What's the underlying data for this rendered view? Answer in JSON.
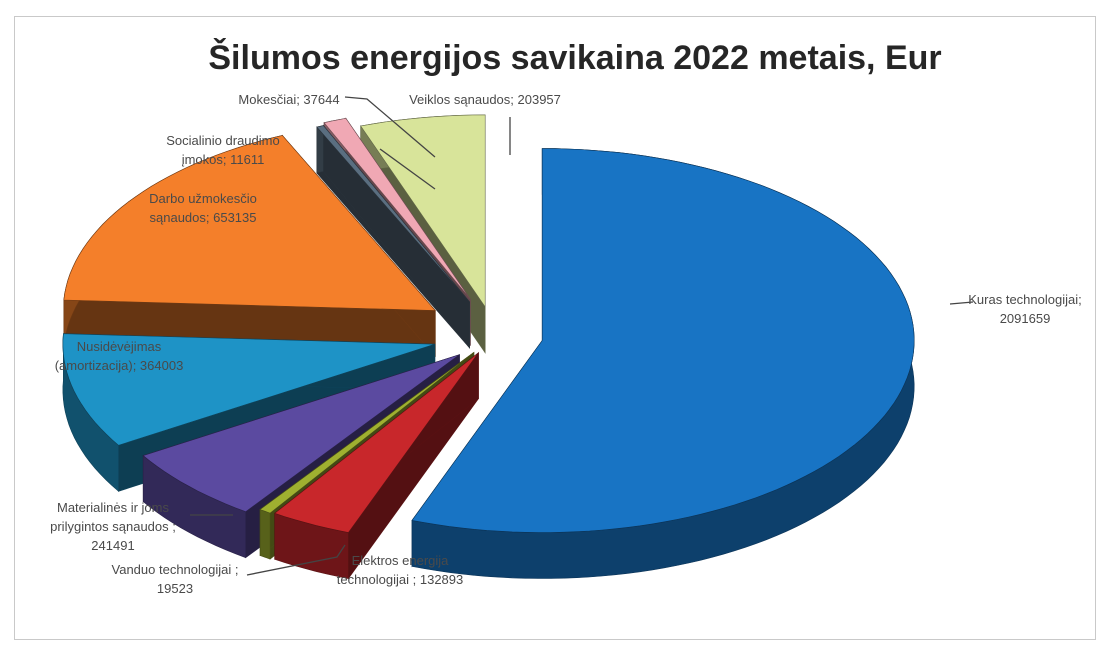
{
  "chart_data": {
    "type": "pie",
    "title": "Šilumos energijos savikaina 2022 metais, Eur",
    "slices": [
      {
        "key": "kuras",
        "label_lines": [
          "Kuras technologijai;",
          "2091659"
        ],
        "value": 2091659,
        "color": "#1874c4"
      },
      {
        "key": "elektra",
        "label_lines": [
          "Elektros energija",
          "technologijai ; 132893"
        ],
        "value": 132893,
        "color": "#c8272b"
      },
      {
        "key": "vanduo",
        "label_lines": [
          "Vanduo technologijai ;",
          "19523"
        ],
        "value": 19523,
        "color": "#9fb030"
      },
      {
        "key": "materialines",
        "label_lines": [
          "Materialinės ir joms",
          "prilygintos sąnaudos ;",
          "241491"
        ],
        "value": 241491,
        "color": "#5b4aa0"
      },
      {
        "key": "nusidevejimas",
        "label_lines": [
          "Nusidėvėjimas",
          "(amortizacija); 364003"
        ],
        "value": 364003,
        "color": "#1e93c6"
      },
      {
        "key": "darbo",
        "label_lines": [
          "Darbo užmokesčio",
          "sąnaudos; 653135"
        ],
        "value": 653135,
        "color": "#f47f2a"
      },
      {
        "key": "socialinio",
        "label_lines": [
          "Socialinio draudimo",
          "įmokos; 11611"
        ],
        "value": 11611,
        "color": "#5a6e80"
      },
      {
        "key": "mokesciai",
        "label_lines": [
          "Mokesčiai; 37644"
        ],
        "value": 37644,
        "color": "#f0a8b4"
      },
      {
        "key": "veiklos",
        "label_lines": [
          "Veiklos sąnaudos; 203957"
        ],
        "value": 203957,
        "color": "#d8e49a"
      }
    ]
  }
}
